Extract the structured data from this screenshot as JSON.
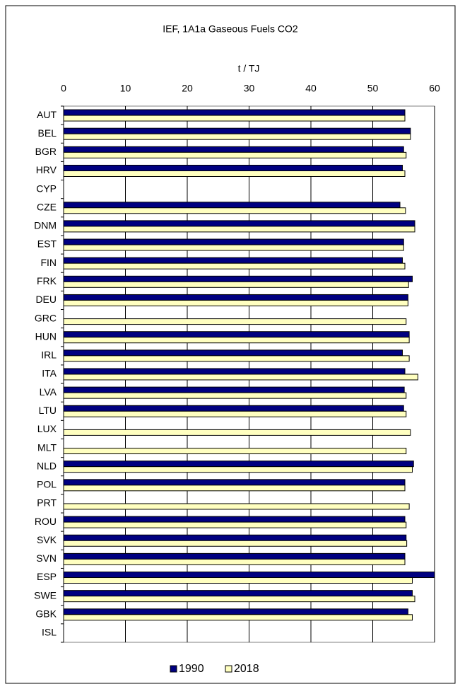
{
  "chart_data": {
    "type": "hbar",
    "title": "IEF,  1A1a Gaseous Fuels CO2",
    "x_label": "t / TJ",
    "categories": [
      "AUT",
      "BEL",
      "BGR",
      "HRV",
      "CYP",
      "CZE",
      "DNM",
      "EST",
      "FIN",
      "FRK",
      "DEU",
      "GRC",
      "HUN",
      "IRL",
      "ITA",
      "LVA",
      "LTU",
      "LUX",
      "MLT",
      "NLD",
      "POL",
      "PRT",
      "ROU",
      "SVK",
      "SVN",
      "ESP",
      "SWE",
      "GBK",
      "ISL"
    ],
    "series": [
      {
        "name": "1990",
        "color": "#000080",
        "values": [
          55.2,
          56.1,
          55.0,
          54.8,
          null,
          54.4,
          56.8,
          55.0,
          54.8,
          56.4,
          55.7,
          null,
          55.9,
          54.8,
          55.2,
          55.1,
          55.0,
          null,
          null,
          56.6,
          55.2,
          null,
          55.2,
          55.4,
          55.2,
          60,
          56.4,
          55.7,
          null
        ]
      },
      {
        "name": "2018",
        "color": "#ffffc0",
        "values": [
          55.2,
          56.1,
          55.4,
          55.2,
          null,
          55.3,
          56.8,
          55.0,
          55.2,
          55.8,
          55.7,
          55.4,
          55.9,
          55.9,
          57.3,
          55.4,
          55.4,
          56.1,
          55.4,
          56.4,
          55.2,
          55.9,
          55.4,
          55.5,
          55.2,
          56.4,
          56.8,
          56.4,
          null
        ]
      }
    ],
    "xlim": [
      0,
      60
    ],
    "xticks": [
      0,
      10,
      20,
      30,
      40,
      50,
      60
    ],
    "grid": true,
    "legend": "bottom"
  }
}
